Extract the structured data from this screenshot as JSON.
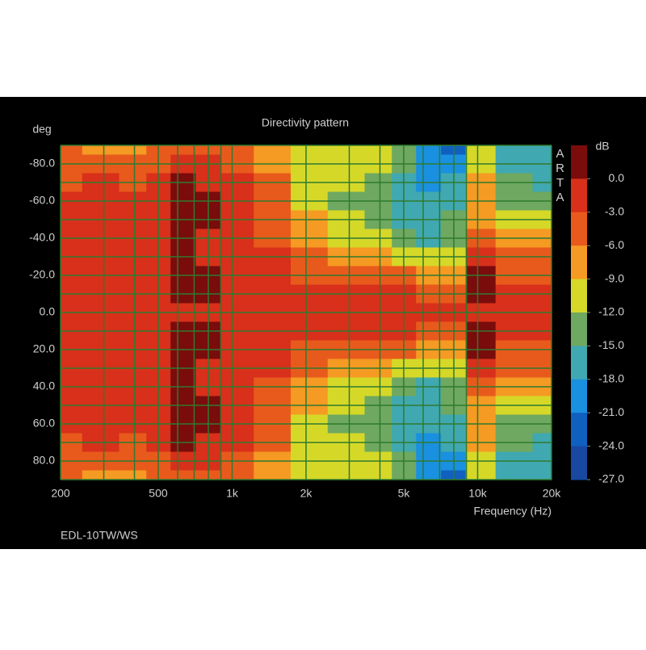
{
  "chart_data": {
    "type": "heatmap",
    "title": "Directivity pattern",
    "ylabel": "deg",
    "xlabel": "Frequency (Hz)",
    "watermark": "ARTA",
    "footer": "EDL-10TW/WS",
    "log_x": true,
    "x": [
      200,
      300,
      400,
      500,
      630,
      800,
      1000,
      1500,
      2000,
      3000,
      4000,
      5000,
      6300,
      8000,
      10000,
      14000,
      20000
    ],
    "y": [
      -90,
      -80,
      -70,
      -60,
      -50,
      -40,
      -30,
      -20,
      -10,
      0,
      10,
      20,
      30,
      40,
      50,
      60,
      70,
      80,
      90
    ],
    "z": [
      [
        -5,
        -7,
        -7,
        -5,
        -4,
        -4,
        -5,
        -7,
        -11,
        -10,
        -10,
        -13,
        -20,
        -21,
        -9,
        -16,
        -17
      ],
      [
        -4,
        -4,
        -5,
        -3,
        -2,
        -2,
        -3,
        -6,
        -10,
        -10,
        -11,
        -13,
        -19,
        -19,
        -9,
        -15,
        -16
      ],
      [
        -3,
        -2,
        -3,
        -1,
        0.5,
        -1,
        -2,
        -5,
        -10,
        -11,
        -13,
        -15,
        -18,
        -17,
        -8,
        -14,
        -15
      ],
      [
        -2,
        -2,
        -2,
        -1,
        1,
        0.5,
        -1.5,
        -4,
        -9,
        -12,
        -14,
        -16,
        -17,
        -15,
        -7,
        -12,
        -13
      ],
      [
        -2,
        -2,
        -2,
        -1,
        1,
        0.5,
        -1.5,
        -3.5,
        -8,
        -11,
        -13,
        -15,
        -16,
        -13,
        -6,
        -10,
        -11
      ],
      [
        -2,
        -2,
        -2,
        -1,
        0.5,
        -1,
        -1.5,
        -3,
        -6,
        -9,
        -10,
        -13,
        -15,
        -12,
        -3,
        -7,
        -8
      ],
      [
        -2,
        -2,
        -2,
        -1,
        1,
        -0.5,
        -1.5,
        -2.5,
        -4,
        -6,
        -7,
        -9,
        -10,
        -9,
        0,
        -4,
        -5
      ],
      [
        -2,
        -2,
        -2,
        -1,
        1,
        0.5,
        -1.5,
        -2,
        -3,
        -4,
        -4,
        -5,
        -6,
        -6,
        0.5,
        -3,
        -3.5
      ],
      [
        -2,
        -2,
        -2,
        -1,
        0.5,
        0.5,
        -1.5,
        -2,
        -2,
        -2,
        -2,
        -2.5,
        -3,
        -3,
        0.5,
        -2,
        -2.5
      ],
      [
        -2,
        -2,
        -2,
        -1.5,
        -1,
        -1,
        -1.5,
        -1.5,
        -1.5,
        -1.5,
        -1.5,
        -2,
        -2,
        -2.5,
        -1,
        -2,
        -2
      ],
      [
        -2,
        -2,
        -2,
        -1,
        0.5,
        0.5,
        -1.5,
        -2,
        -2,
        -2,
        -2,
        -2.5,
        -3,
        -3,
        0.5,
        -2,
        -2.5
      ],
      [
        -2,
        -2,
        -2,
        -1,
        1,
        0.5,
        -1.5,
        -2,
        -3,
        -4,
        -4,
        -5,
        -6,
        -6,
        0.5,
        -3,
        -3.5
      ],
      [
        -2,
        -2,
        -2,
        -1,
        1,
        -0.5,
        -1.5,
        -2.5,
        -4,
        -6,
        -7,
        -9,
        -10,
        -9,
        0,
        -4,
        -5
      ],
      [
        -2,
        -2,
        -2,
        -1,
        0.5,
        -1,
        -1.5,
        -3,
        -6,
        -9,
        -10,
        -13,
        -15,
        -12,
        -3,
        -7,
        -8
      ],
      [
        -2,
        -2,
        -2,
        -1,
        1,
        0.5,
        -1.5,
        -3.5,
        -8,
        -11,
        -13,
        -15,
        -16,
        -13,
        -6,
        -10,
        -11
      ],
      [
        -2,
        -2,
        -2,
        -1,
        1,
        0.5,
        -1.5,
        -4,
        -9,
        -12,
        -14,
        -16,
        -17,
        -15,
        -7,
        -12,
        -13
      ],
      [
        -3,
        -2,
        -3,
        -1,
        0.5,
        -1,
        -2,
        -5,
        -10,
        -11,
        -13,
        -15,
        -18,
        -17,
        -8,
        -14,
        -15
      ],
      [
        -4,
        -4,
        -5,
        -3,
        -2,
        -2,
        -3,
        -6,
        -10,
        -10,
        -11,
        -13,
        -19,
        -19,
        -9,
        -15,
        -16
      ],
      [
        -5,
        -7,
        -7,
        -5,
        -4,
        -4,
        -5,
        -7,
        -11,
        -10,
        -10,
        -13,
        -20,
        -21,
        -9,
        -16,
        -17
      ]
    ],
    "xlim": [
      200,
      20000
    ],
    "xticks": [
      200,
      500,
      {
        "value": 1000,
        "label": "1k"
      },
      {
        "value": 2000,
        "label": "2k"
      },
      {
        "value": 5000,
        "label": "5k"
      },
      {
        "value": 10000,
        "label": "10k"
      },
      {
        "value": 20000,
        "label": "20k"
      }
    ],
    "xminor": [
      300,
      400,
      600,
      700,
      800,
      900,
      3000,
      4000,
      6000,
      7000,
      8000,
      9000
    ],
    "ylim": [
      -90,
      90
    ],
    "yticks": [
      {
        "value": -80,
        "label": "-80.0"
      },
      {
        "value": -60,
        "label": "-60.0"
      },
      {
        "value": -40,
        "label": "-40.0"
      },
      {
        "value": -20,
        "label": "-20.0"
      },
      {
        "value": 0,
        "label": "0.0"
      },
      {
        "value": 20,
        "label": "20.0"
      },
      {
        "value": 40,
        "label": "40.0"
      },
      {
        "value": 60,
        "label": "60.0"
      },
      {
        "value": 80,
        "label": "80.0"
      }
    ],
    "yminor": [
      -90,
      -70,
      -50,
      -30,
      -10,
      10,
      30,
      50,
      70,
      90
    ],
    "grid": true,
    "grid_color": "#2f7a2f",
    "colorbar": {
      "label": "dB",
      "zlim": [
        -27,
        3
      ],
      "colors": [
        "#7a0c0c",
        "#d8301a",
        "#e85a1c",
        "#f59a22",
        "#d6d828",
        "#6fa860",
        "#40a8b0",
        "#1a90e0",
        "#1060c0",
        "#1848a0"
      ],
      "ticks": [
        {
          "value": 0,
          "label": "0.0"
        },
        {
          "value": -3,
          "label": "-3.0"
        },
        {
          "value": -6,
          "label": "-6.0"
        },
        {
          "value": -9,
          "label": "-9.0"
        },
        {
          "value": -12,
          "label": "-12.0"
        },
        {
          "value": -15,
          "label": "-15.0"
        },
        {
          "value": -18,
          "label": "-18.0"
        },
        {
          "value": -21,
          "label": "-21.0"
        },
        {
          "value": -24,
          "label": "-24.0"
        },
        {
          "value": -27,
          "label": "-27.0"
        }
      ]
    }
  }
}
